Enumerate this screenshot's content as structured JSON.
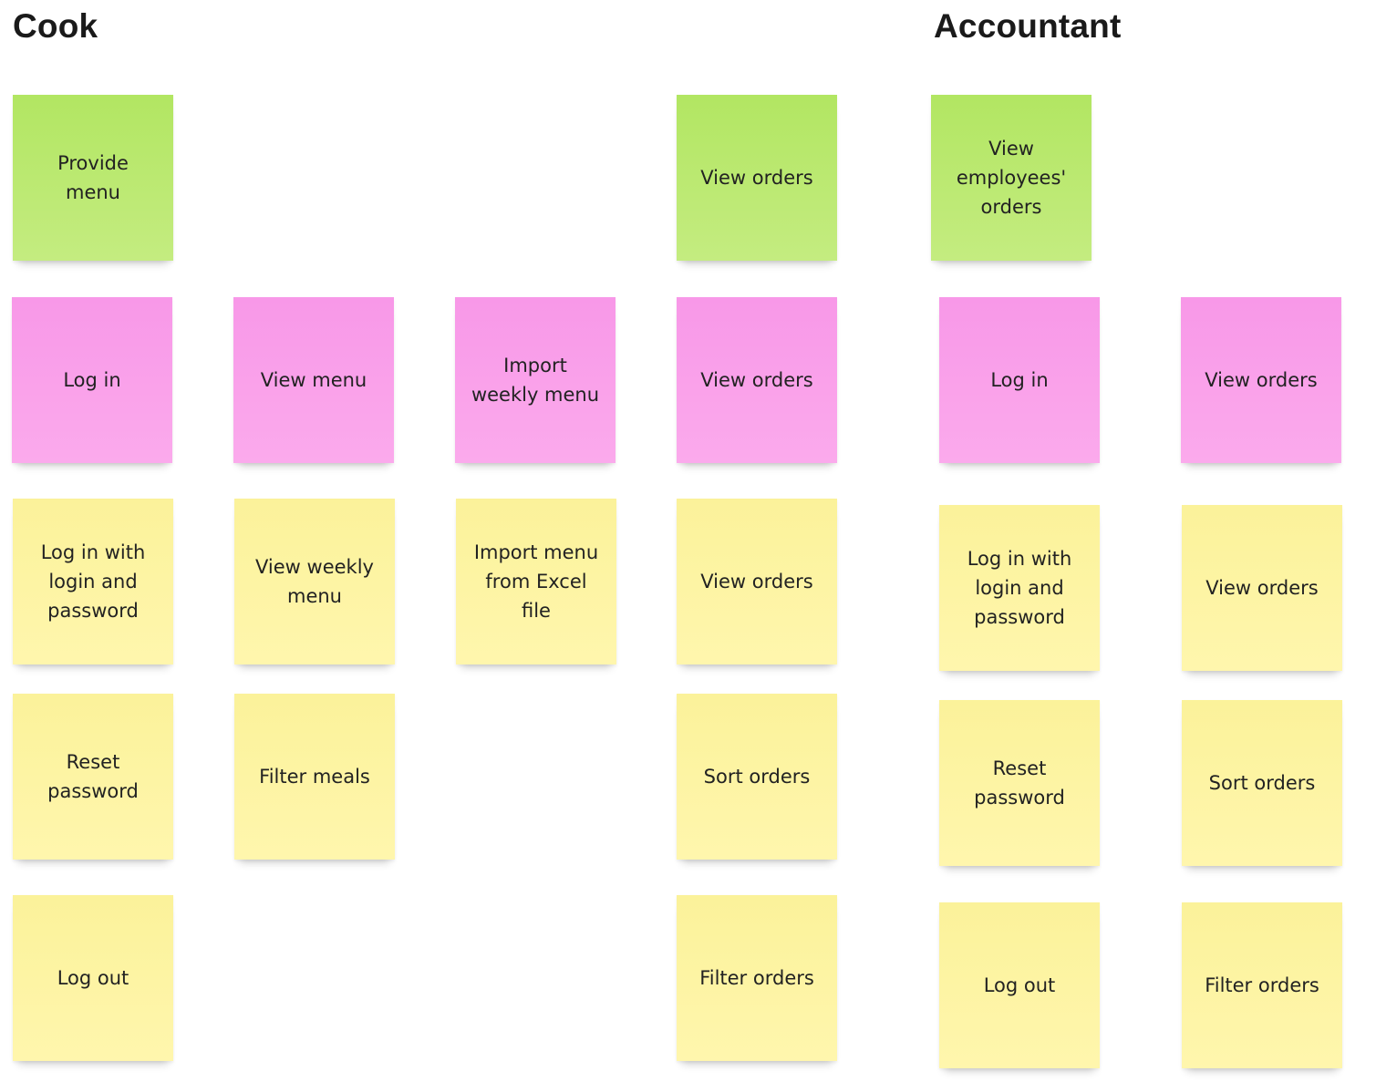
{
  "headings": {
    "cook": "Cook",
    "accountant": "Accountant"
  },
  "colors": {
    "green": "#b8e86b",
    "pink": "#f9a0ea",
    "yellow": "#fdf4a3"
  },
  "cook": {
    "activity": {
      "provide_menu": "Provide\nmenu",
      "view_orders": "View orders"
    },
    "task": {
      "log_in": "Log in",
      "view_menu": "View menu",
      "import_weekly_menu": "Import\nweekly menu",
      "view_orders": "View orders"
    },
    "story": {
      "log_in_with_login_and_password": "Log in with\nlogin and\npassword",
      "view_weekly_menu": "View weekly\nmenu",
      "import_menu_from_excel_file": "Import menu\nfrom Excel\nfile",
      "view_orders": "View orders",
      "reset_password": "Reset\npassword",
      "filter_meals": "Filter meals",
      "sort_orders": "Sort orders",
      "log_out": "Log out",
      "filter_orders": "Filter orders"
    }
  },
  "accountant": {
    "activity": {
      "view_employees_orders": "View\nemployees'\norders"
    },
    "task": {
      "log_in": "Log in",
      "view_orders": "View orders"
    },
    "story": {
      "log_in_with_login_and_password": "Log in with\nlogin and\npassword",
      "view_orders": "View orders",
      "reset_password": "Reset\npassword",
      "sort_orders": "Sort orders",
      "log_out": "Log out",
      "filter_orders": "Filter orders"
    }
  }
}
